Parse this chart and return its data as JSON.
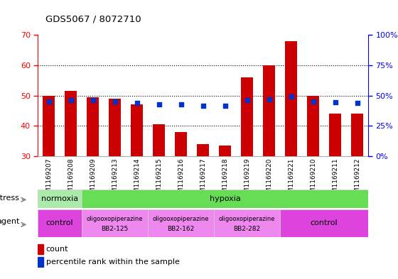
{
  "title": "GDS5067 / 8072710",
  "samples": [
    "GSM1169207",
    "GSM1169208",
    "GSM1169209",
    "GSM1169213",
    "GSM1169214",
    "GSM1169215",
    "GSM1169216",
    "GSM1169217",
    "GSM1169218",
    "GSM1169219",
    "GSM1169220",
    "GSM1169221",
    "GSM1169210",
    "GSM1169211",
    "GSM1169212"
  ],
  "counts": [
    50,
    51.5,
    49.5,
    49,
    47,
    40.5,
    38,
    34,
    33.5,
    56,
    60,
    68,
    50,
    44,
    44
  ],
  "percentiles_pct": [
    45,
    46,
    46,
    45,
    44,
    43,
    43,
    41.5,
    41.5,
    46,
    47,
    49,
    45,
    44.5,
    44
  ],
  "y_min": 30,
  "y_max": 70,
  "y_ticks": [
    30,
    40,
    50,
    60,
    70
  ],
  "right_y_ticks": [
    0,
    25,
    50,
    75,
    100
  ],
  "bar_color": "#cc0000",
  "dot_color": "#0033cc",
  "bar_width": 0.55,
  "stress_groups": [
    {
      "label": "normoxia",
      "start": 0,
      "end": 2,
      "color": "#aaeaaa"
    },
    {
      "label": "hypoxia",
      "start": 2,
      "end": 15,
      "color": "#66dd55"
    }
  ],
  "agent_groups": [
    {
      "label": "control",
      "start": 0,
      "end": 2,
      "color": "#dd44dd"
    },
    {
      "label": "oligooxopiperazine\nBB2-125",
      "start": 2,
      "end": 5,
      "color": "#ee88ee"
    },
    {
      "label": "oligooxopiperazine\nBB2-162",
      "start": 5,
      "end": 8,
      "color": "#ee88ee"
    },
    {
      "label": "oligooxopiperazine\nBB2-282",
      "start": 8,
      "end": 11,
      "color": "#ee88ee"
    },
    {
      "label": "control",
      "start": 11,
      "end": 15,
      "color": "#dd44dd"
    }
  ],
  "legend_count_color": "#cc0000",
  "legend_dot_color": "#0033cc"
}
